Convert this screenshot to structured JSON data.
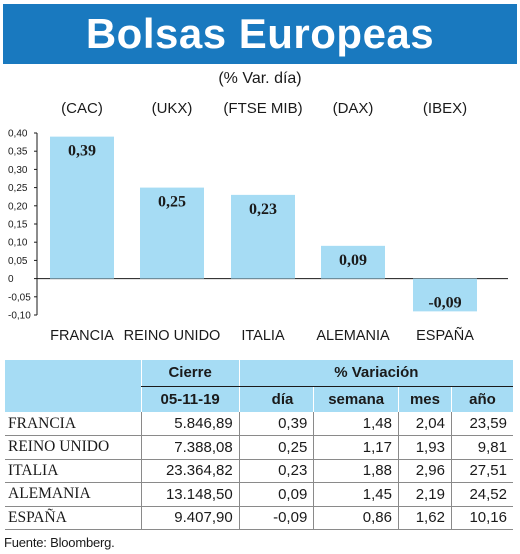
{
  "title": "Bolsas Europeas",
  "subtitle": "(% Var. día)",
  "chart_data": {
    "type": "bar",
    "indices": [
      "(CAC)",
      "(UKX)",
      "(FTSE MIB)",
      "(DAX)",
      "(IBEX)"
    ],
    "categories": [
      "FRANCIA",
      "REINO UNIDO",
      "ITALIA",
      "ALEMANIA",
      "ESPAÑA"
    ],
    "values": [
      0.39,
      0.25,
      0.23,
      0.09,
      -0.09
    ],
    "value_labels": [
      "0,39",
      "0,25",
      "0,23",
      "0,09",
      "-0,09"
    ],
    "yticks": [
      "0,40",
      "0,35",
      "0,30",
      "0,25",
      "0,20",
      "0,15",
      "0,10",
      "0,05",
      "0",
      "-0,05",
      "-0,10"
    ],
    "ylim": [
      -0.1,
      0.4
    ],
    "bar_color": "#a6dcf4"
  },
  "table": {
    "header_cierre": "Cierre",
    "header_variacion": "% Variación",
    "date": "05-11-19",
    "col_dia": "día",
    "col_semana": "semana",
    "col_mes": "mes",
    "col_ano": "año",
    "rows": [
      {
        "country": "FRANCIA",
        "cierre": "5.846,89",
        "dia": "0,39",
        "semana": "1,48",
        "mes": "2,04",
        "ano": "23,59"
      },
      {
        "country": "REINO UNIDO",
        "cierre": "7.388,08",
        "dia": "0,25",
        "semana": "1,17",
        "mes": "1,93",
        "ano": "9,81"
      },
      {
        "country": "ITALIA",
        "cierre": "23.364,82",
        "dia": "0,23",
        "semana": "1,88",
        "mes": "2,96",
        "ano": "27,51"
      },
      {
        "country": "ALEMANIA",
        "cierre": "13.148,50",
        "dia": "0,09",
        "semana": "1,45",
        "mes": "2,19",
        "ano": "24,52"
      },
      {
        "country": "ESPAÑA",
        "cierre": "9.407,90",
        "dia": "-0,09",
        "semana": "0,86",
        "mes": "1,62",
        "ano": "10,16"
      }
    ]
  },
  "source": "Fuente: Bloomberg."
}
